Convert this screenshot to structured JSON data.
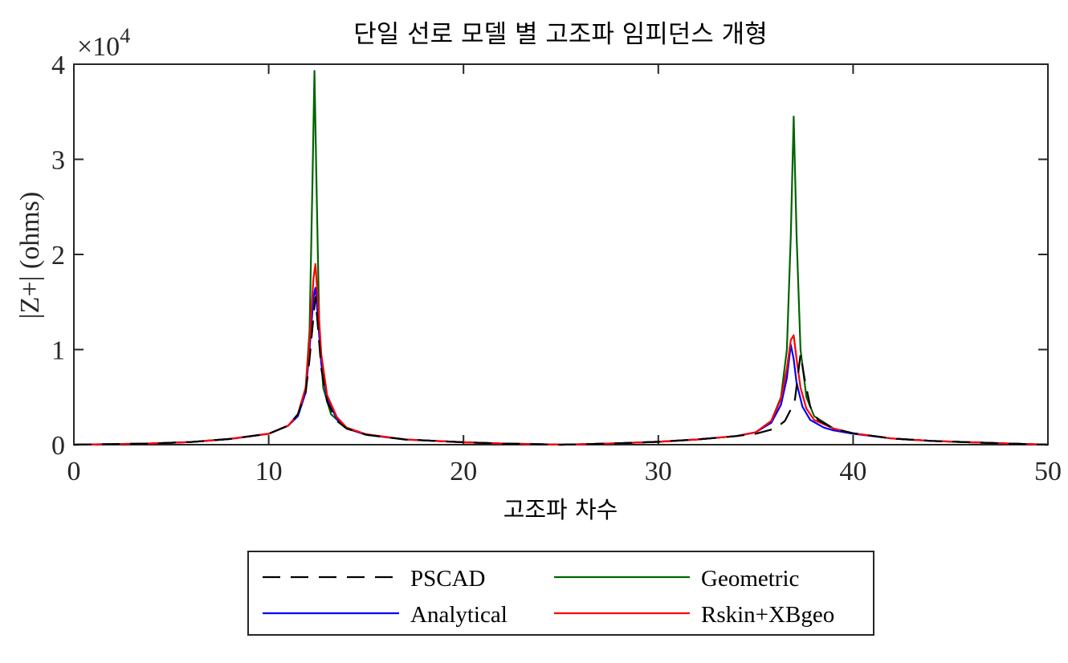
{
  "chart_data": {
    "type": "line",
    "title": "단일 선로 모델 별 고조파 임피던스 개형",
    "xlabel": "고조파 차수",
    "ylabel": "|Z+| (ohms)",
    "exponent_label": {
      "base": "×10",
      "power": "4"
    },
    "xlim": [
      0,
      50
    ],
    "ylim": [
      0,
      40000
    ],
    "xticks": [
      0,
      10,
      20,
      30,
      40,
      50
    ],
    "yticks": [
      0,
      10000,
      20000,
      30000,
      40000
    ],
    "xtick_labels": [
      "0",
      "10",
      "20",
      "30",
      "40",
      "50"
    ],
    "ytick_labels": [
      "0",
      "1",
      "2",
      "3",
      "4"
    ],
    "grid": false,
    "legend_position": "bottom-outside",
    "series": [
      {
        "name": "PSCAD",
        "color": "#000000",
        "dash": "dashed",
        "points": [
          [
            0,
            0
          ],
          [
            2,
            60
          ],
          [
            4,
            130
          ],
          [
            6,
            280
          ],
          [
            8,
            600
          ],
          [
            10,
            1150
          ],
          [
            11,
            2000
          ],
          [
            11.5,
            3200
          ],
          [
            11.9,
            5500
          ],
          [
            12.1,
            9000
          ],
          [
            12.3,
            13500
          ],
          [
            12.4,
            15500
          ],
          [
            12.5,
            13000
          ],
          [
            12.7,
            8000
          ],
          [
            13,
            4500
          ],
          [
            13.5,
            2500
          ],
          [
            14,
            1700
          ],
          [
            15,
            1050
          ],
          [
            17,
            550
          ],
          [
            20,
            250
          ],
          [
            22,
            120
          ],
          [
            24,
            40
          ],
          [
            25,
            0
          ],
          [
            26,
            40
          ],
          [
            28,
            150
          ],
          [
            30,
            300
          ],
          [
            32,
            550
          ],
          [
            34,
            900
          ],
          [
            35,
            1150
          ],
          [
            36,
            1700
          ],
          [
            36.5,
            2500
          ],
          [
            37,
            4500
          ],
          [
            37.3,
            9500
          ],
          [
            37.5,
            7000
          ],
          [
            37.8,
            4000
          ],
          [
            38.2,
            2600
          ],
          [
            39,
            1700
          ],
          [
            40,
            1200
          ],
          [
            42,
            650
          ],
          [
            44,
            400
          ],
          [
            46,
            250
          ],
          [
            48,
            120
          ],
          [
            50,
            0
          ]
        ]
      },
      {
        "name": "Geometric",
        "color": "#006400",
        "dash": "solid",
        "points": [
          [
            0,
            0
          ],
          [
            2,
            60
          ],
          [
            4,
            130
          ],
          [
            6,
            280
          ],
          [
            8,
            600
          ],
          [
            10,
            1150
          ],
          [
            11,
            2000
          ],
          [
            11.5,
            3200
          ],
          [
            11.9,
            6000
          ],
          [
            12.1,
            12000
          ],
          [
            12.25,
            28000
          ],
          [
            12.35,
            39300
          ],
          [
            12.45,
            28000
          ],
          [
            12.6,
            12000
          ],
          [
            12.8,
            6000
          ],
          [
            13.2,
            3200
          ],
          [
            14,
            1700
          ],
          [
            15,
            1050
          ],
          [
            17,
            550
          ],
          [
            20,
            250
          ],
          [
            22,
            120
          ],
          [
            24,
            40
          ],
          [
            25,
            0
          ],
          [
            26,
            40
          ],
          [
            28,
            150
          ],
          [
            30,
            300
          ],
          [
            32,
            550
          ],
          [
            34,
            900
          ],
          [
            35,
            1300
          ],
          [
            35.8,
            2500
          ],
          [
            36.3,
            5000
          ],
          [
            36.6,
            10000
          ],
          [
            36.8,
            22000
          ],
          [
            36.95,
            34500
          ],
          [
            37.1,
            22000
          ],
          [
            37.3,
            10000
          ],
          [
            37.6,
            5000
          ],
          [
            38,
            3000
          ],
          [
            39,
            1700
          ],
          [
            40,
            1200
          ],
          [
            42,
            650
          ],
          [
            44,
            400
          ],
          [
            46,
            250
          ],
          [
            48,
            120
          ],
          [
            50,
            0
          ]
        ]
      },
      {
        "name": "Analytical",
        "color": "#0000ff",
        "dash": "solid",
        "points": [
          [
            0,
            0
          ],
          [
            2,
            60
          ],
          [
            4,
            130
          ],
          [
            6,
            280
          ],
          [
            8,
            600
          ],
          [
            10,
            1150
          ],
          [
            11,
            2000
          ],
          [
            11.5,
            3000
          ],
          [
            11.9,
            5500
          ],
          [
            12.1,
            10000
          ],
          [
            12.3,
            15500
          ],
          [
            12.4,
            16500
          ],
          [
            12.5,
            14000
          ],
          [
            12.7,
            8500
          ],
          [
            13,
            4800
          ],
          [
            13.5,
            2700
          ],
          [
            14,
            1750
          ],
          [
            15,
            1050
          ],
          [
            17,
            550
          ],
          [
            20,
            250
          ],
          [
            22,
            120
          ],
          [
            24,
            40
          ],
          [
            25,
            0
          ],
          [
            26,
            40
          ],
          [
            28,
            150
          ],
          [
            30,
            300
          ],
          [
            32,
            550
          ],
          [
            34,
            900
          ],
          [
            35,
            1300
          ],
          [
            35.8,
            2300
          ],
          [
            36.3,
            4200
          ],
          [
            36.6,
            7000
          ],
          [
            36.8,
            10500
          ],
          [
            36.95,
            9000
          ],
          [
            37.1,
            6500
          ],
          [
            37.4,
            4000
          ],
          [
            37.8,
            2600
          ],
          [
            38.5,
            1800
          ],
          [
            39,
            1500
          ],
          [
            40,
            1150
          ],
          [
            42,
            650
          ],
          [
            44,
            400
          ],
          [
            46,
            250
          ],
          [
            48,
            120
          ],
          [
            50,
            0
          ]
        ]
      },
      {
        "name": "Rskin+XBgeo",
        "color": "#ff0000",
        "dash": "solid",
        "points": [
          [
            0,
            0
          ],
          [
            2,
            60
          ],
          [
            4,
            130
          ],
          [
            6,
            280
          ],
          [
            8,
            600
          ],
          [
            10,
            1150
          ],
          [
            11,
            2000
          ],
          [
            11.5,
            3200
          ],
          [
            11.9,
            6000
          ],
          [
            12.1,
            11000
          ],
          [
            12.3,
            17500
          ],
          [
            12.4,
            19000
          ],
          [
            12.5,
            16000
          ],
          [
            12.7,
            9500
          ],
          [
            13,
            5200
          ],
          [
            13.5,
            2900
          ],
          [
            14,
            1800
          ],
          [
            15,
            1100
          ],
          [
            17,
            550
          ],
          [
            20,
            250
          ],
          [
            22,
            120
          ],
          [
            24,
            40
          ],
          [
            25,
            0
          ],
          [
            26,
            40
          ],
          [
            28,
            150
          ],
          [
            30,
            300
          ],
          [
            32,
            550
          ],
          [
            34,
            900
          ],
          [
            35,
            1300
          ],
          [
            35.8,
            2500
          ],
          [
            36.3,
            4800
          ],
          [
            36.6,
            8000
          ],
          [
            36.8,
            11000
          ],
          [
            36.95,
            11500
          ],
          [
            37.1,
            9000
          ],
          [
            37.3,
            6000
          ],
          [
            37.6,
            3800
          ],
          [
            38,
            2600
          ],
          [
            39,
            1700
          ],
          [
            40,
            1200
          ],
          [
            42,
            650
          ],
          [
            44,
            400
          ],
          [
            46,
            250
          ],
          [
            48,
            120
          ],
          [
            50,
            0
          ]
        ]
      }
    ],
    "legend_order": [
      "PSCAD",
      "Geometric",
      "Analytical",
      "Rskin+XBgeo"
    ]
  }
}
